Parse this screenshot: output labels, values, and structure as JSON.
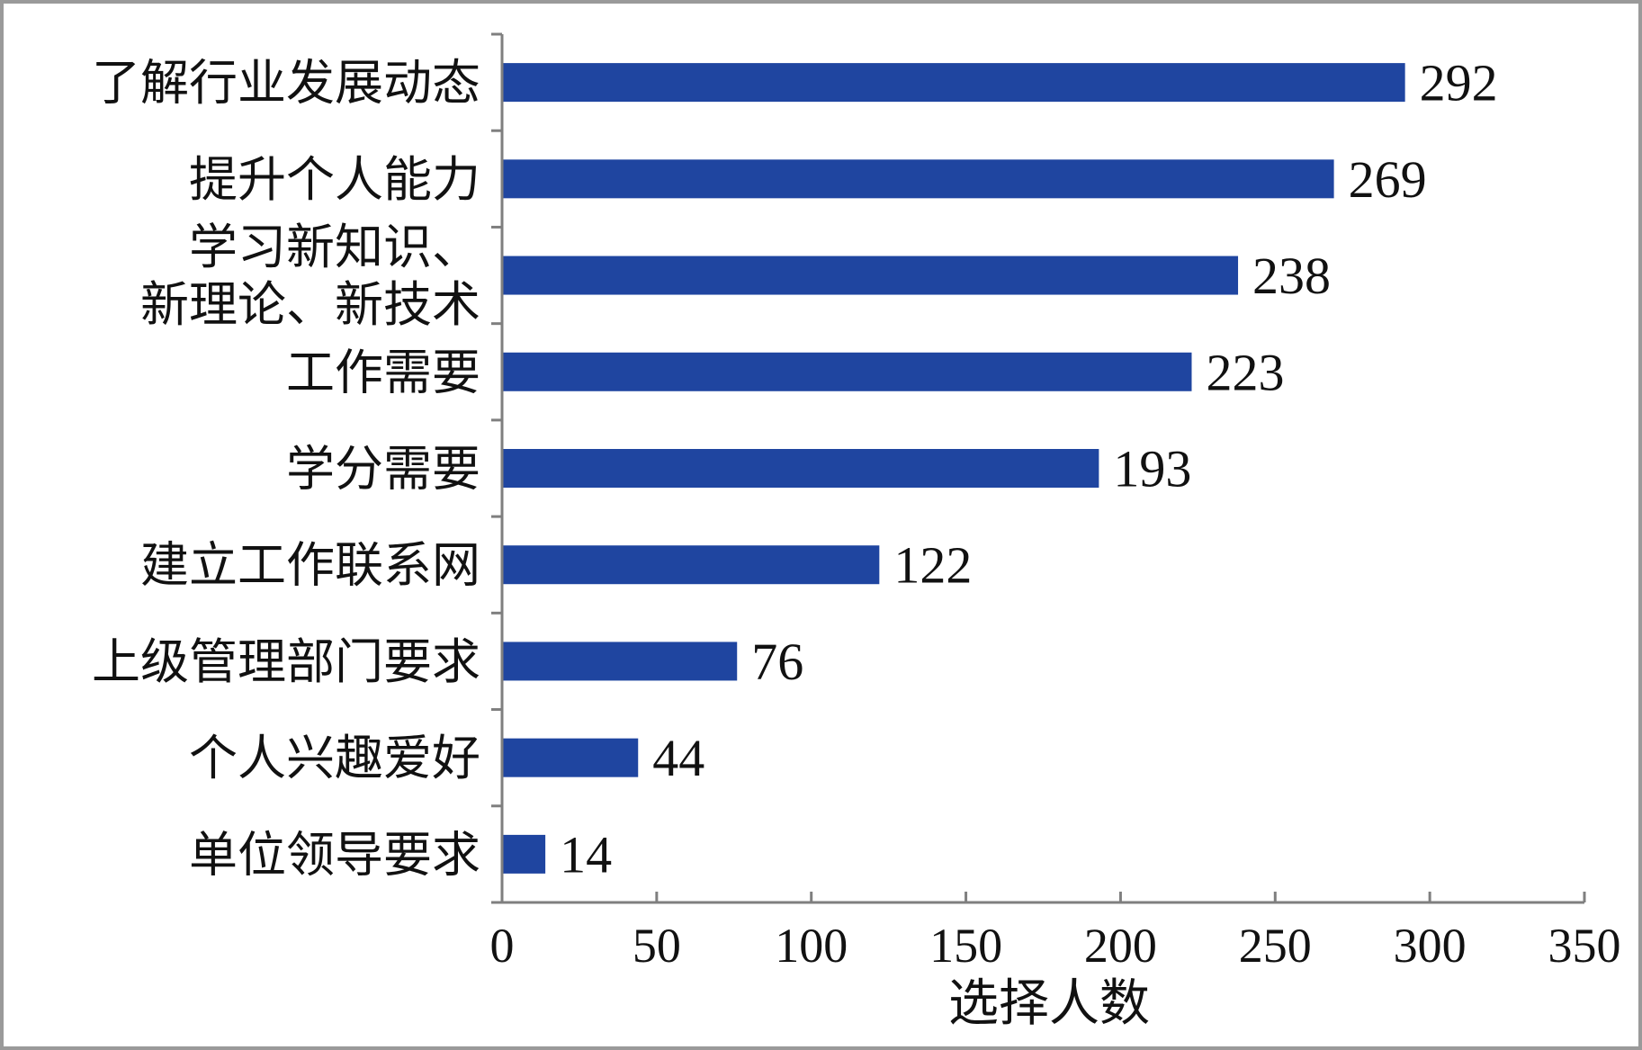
{
  "chart_data": {
    "type": "bar",
    "orientation": "horizontal",
    "categories": [
      [
        "了解行业发展动态"
      ],
      [
        "提升个人能力"
      ],
      [
        "学习新知识、",
        "新理论、新技术"
      ],
      [
        "工作需要"
      ],
      [
        "学分需要"
      ],
      [
        "建立工作联系网"
      ],
      [
        "上级管理部门要求"
      ],
      [
        "个人兴趣爱好"
      ],
      [
        "单位领导要求"
      ]
    ],
    "values": [
      292,
      269,
      238,
      223,
      193,
      122,
      76,
      44,
      14
    ],
    "value_labels": [
      "292",
      "269",
      "238",
      "223",
      "193",
      "122",
      "76",
      "44",
      "14"
    ],
    "xlim": [
      0,
      350
    ],
    "xticks": [
      0,
      50,
      100,
      150,
      200,
      250,
      300,
      350
    ],
    "xtick_labels": [
      "0",
      "50",
      "100",
      "150",
      "200",
      "250",
      "300",
      "350"
    ],
    "xlabel": "选择人数",
    "ylabel": "",
    "title": "",
    "grid": false,
    "legend": "none",
    "bar_color": "#1f45a0",
    "axis_color": "#7f7f7f"
  }
}
